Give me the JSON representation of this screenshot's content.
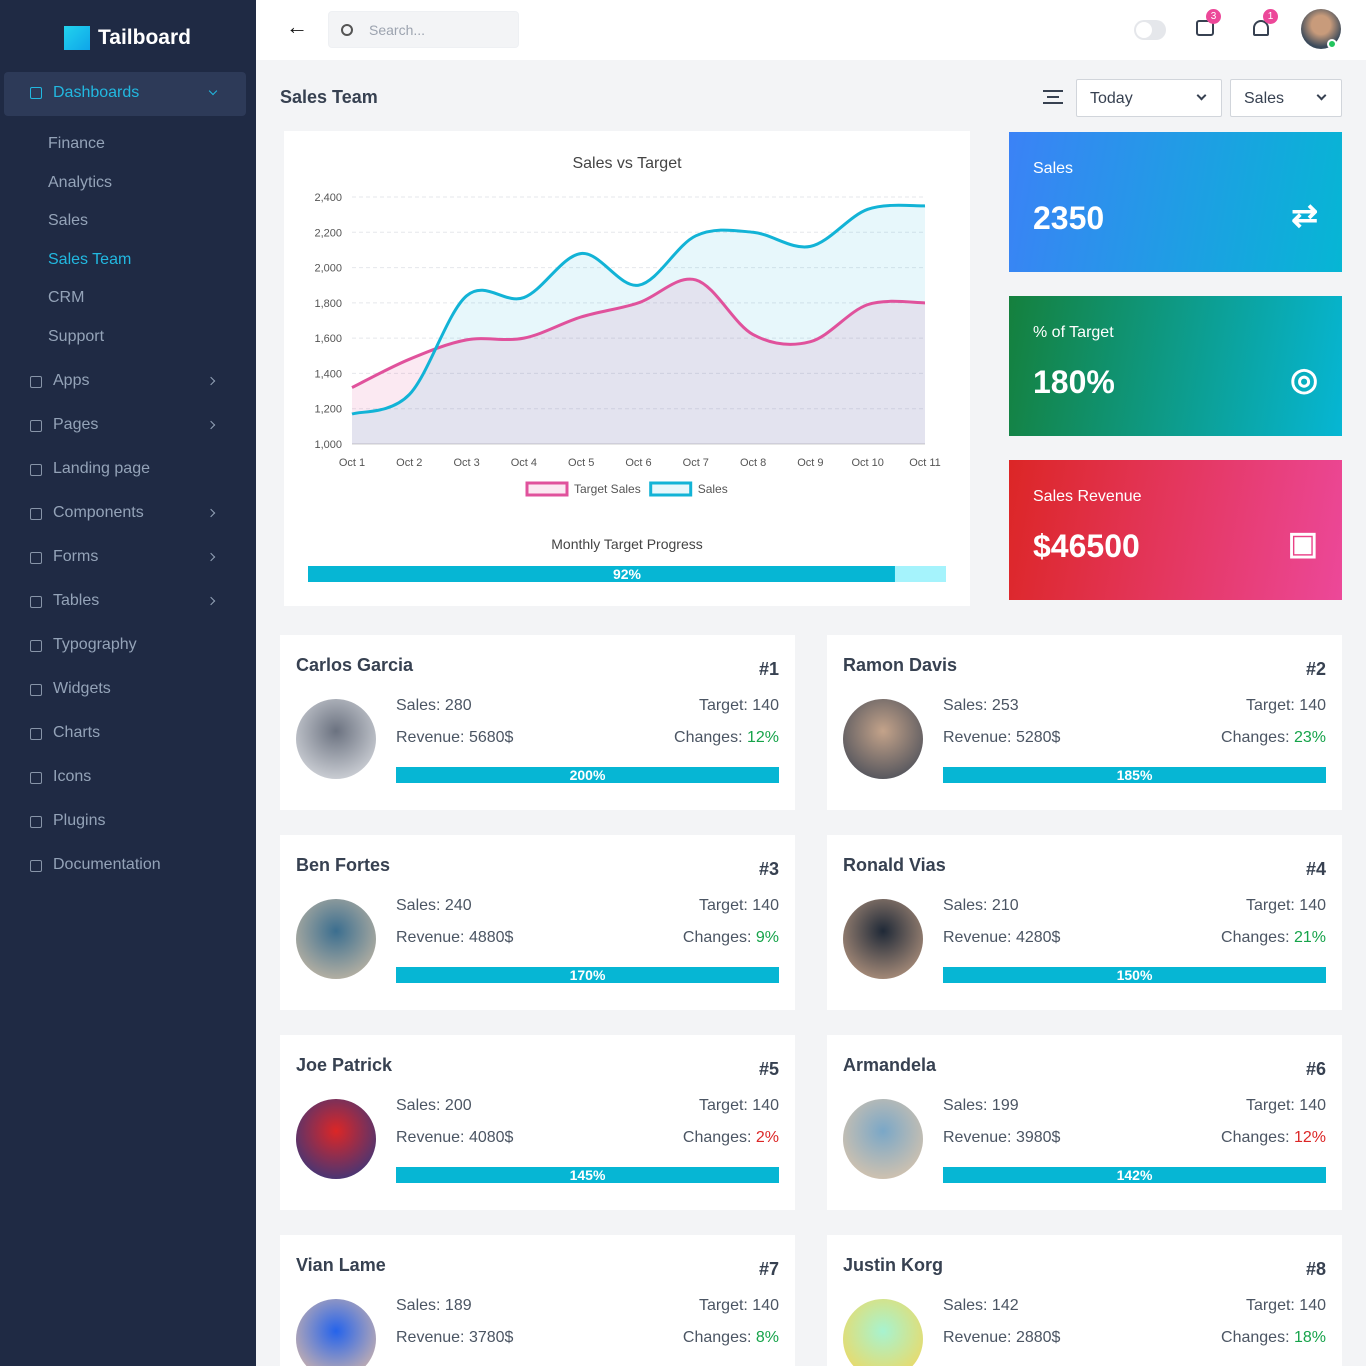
{
  "sidebar": {
    "brand": "Tailboard",
    "nav": [
      {
        "label": "Dashboards",
        "active": true,
        "expanded": true,
        "children": [
          {
            "label": "Finance"
          },
          {
            "label": "Analytics"
          },
          {
            "label": "Sales"
          },
          {
            "label": "Sales Team",
            "active": true
          },
          {
            "label": "CRM"
          },
          {
            "label": "Support"
          }
        ]
      },
      {
        "label": "Apps",
        "arrow": true
      },
      {
        "label": "Pages",
        "arrow": true
      },
      {
        "label": "Landing page"
      },
      {
        "label": "Components",
        "arrow": true
      },
      {
        "label": "Forms",
        "arrow": true
      },
      {
        "label": "Tables",
        "arrow": true
      },
      {
        "label": "Typography"
      },
      {
        "label": "Widgets"
      },
      {
        "label": "Charts"
      },
      {
        "label": "Icons"
      },
      {
        "label": "Plugins"
      },
      {
        "label": "Documentation"
      }
    ]
  },
  "topbar": {
    "search_placeholder": "Search...",
    "messages_badge": "3",
    "notifications_badge": "1"
  },
  "page": {
    "title": "Sales Team",
    "filters": [
      "Today",
      "Sales"
    ]
  },
  "sales_chart": {
    "type": "line",
    "title": "Sales vs Target",
    "categories": [
      "Oct 1",
      "Oct 2",
      "Oct 3",
      "Oct 4",
      "Oct 5",
      "Oct 6",
      "Oct 7",
      "Oct 8",
      "Oct 9",
      "Oct 10",
      "Oct 11"
    ],
    "series": [
      {
        "name": "Target Sales",
        "color": "#e0529c",
        "values": [
          1320,
          1480,
          1590,
          1600,
          1720,
          1800,
          1930,
          1620,
          1580,
          1790,
          1800
        ]
      },
      {
        "name": "Sales",
        "color": "#12b3d6",
        "values": [
          1170,
          1280,
          1840,
          1830,
          2080,
          1900,
          2180,
          2200,
          2120,
          2330,
          2350
        ]
      }
    ],
    "ylim": [
      1000,
      2400
    ],
    "yticks": [
      {
        "value": 1000,
        "label": "1,000"
      },
      {
        "value": 1200,
        "label": "1,200"
      },
      {
        "value": 1400,
        "label": "1,400"
      },
      {
        "value": 1600,
        "label": "1,600"
      },
      {
        "value": 1800,
        "label": "1,800"
      },
      {
        "value": 2000,
        "label": "2,000"
      },
      {
        "value": 2200,
        "label": "2,200"
      },
      {
        "value": 2400,
        "label": "2,400"
      }
    ],
    "grid": true,
    "progress": {
      "title": "Monthly Target Progress",
      "value": 92,
      "value_label": "92%",
      "lim": [
        0,
        100
      ]
    }
  },
  "stats": [
    {
      "label": "Sales",
      "value": "2350"
    },
    {
      "label": "% of Target",
      "value": "180%"
    },
    {
      "label": "Sales Revenue",
      "value": "$46500"
    }
  ],
  "team": [
    {
      "name": "Carlos Garcia",
      "rank": "#1",
      "sales": "Sales: 280",
      "target": "Target: 140",
      "revenue": "Revenue: 5680$",
      "changes_label": "Changes:",
      "changes": "12%",
      "trend": "up",
      "progress": "200%"
    },
    {
      "name": "Ramon Davis",
      "rank": "#2",
      "sales": "Sales: 253",
      "target": "Target: 140",
      "revenue": "Revenue: 5280$",
      "changes_label": "Changes:",
      "changes": "23%",
      "trend": "up",
      "progress": "185%"
    },
    {
      "name": "Ben Fortes",
      "rank": "#3",
      "sales": "Sales: 240",
      "target": "Target: 140",
      "revenue": "Revenue: 4880$",
      "changes_label": "Changes:",
      "changes": "9%",
      "trend": "up",
      "progress": "170%"
    },
    {
      "name": "Ronald Vias",
      "rank": "#4",
      "sales": "Sales: 210",
      "target": "Target: 140",
      "revenue": "Revenue: 4280$",
      "changes_label": "Changes:",
      "changes": "21%",
      "trend": "up",
      "progress": "150%"
    },
    {
      "name": "Joe Patrick",
      "rank": "#5",
      "sales": "Sales: 200",
      "target": "Target: 140",
      "revenue": "Revenue: 4080$",
      "changes_label": "Changes:",
      "changes": "2%",
      "trend": "down",
      "progress": "145%"
    },
    {
      "name": "Armandela",
      "rank": "#6",
      "sales": "Sales: 199",
      "target": "Target: 140",
      "revenue": "Revenue: 3980$",
      "changes_label": "Changes:",
      "changes": "12%",
      "trend": "down",
      "progress": "142%"
    },
    {
      "name": "Vian Lame",
      "rank": "#7",
      "sales": "Sales: 189",
      "target": "Target: 140",
      "revenue": "Revenue: 3780$",
      "changes_label": "Changes:",
      "changes": "8%",
      "trend": "up"
    },
    {
      "name": "Justin Korg",
      "rank": "#8",
      "sales": "Sales: 142",
      "target": "Target: 140",
      "revenue": "Revenue: 2880$",
      "changes_label": "Changes:",
      "changes": "18%",
      "trend": "up"
    }
  ]
}
